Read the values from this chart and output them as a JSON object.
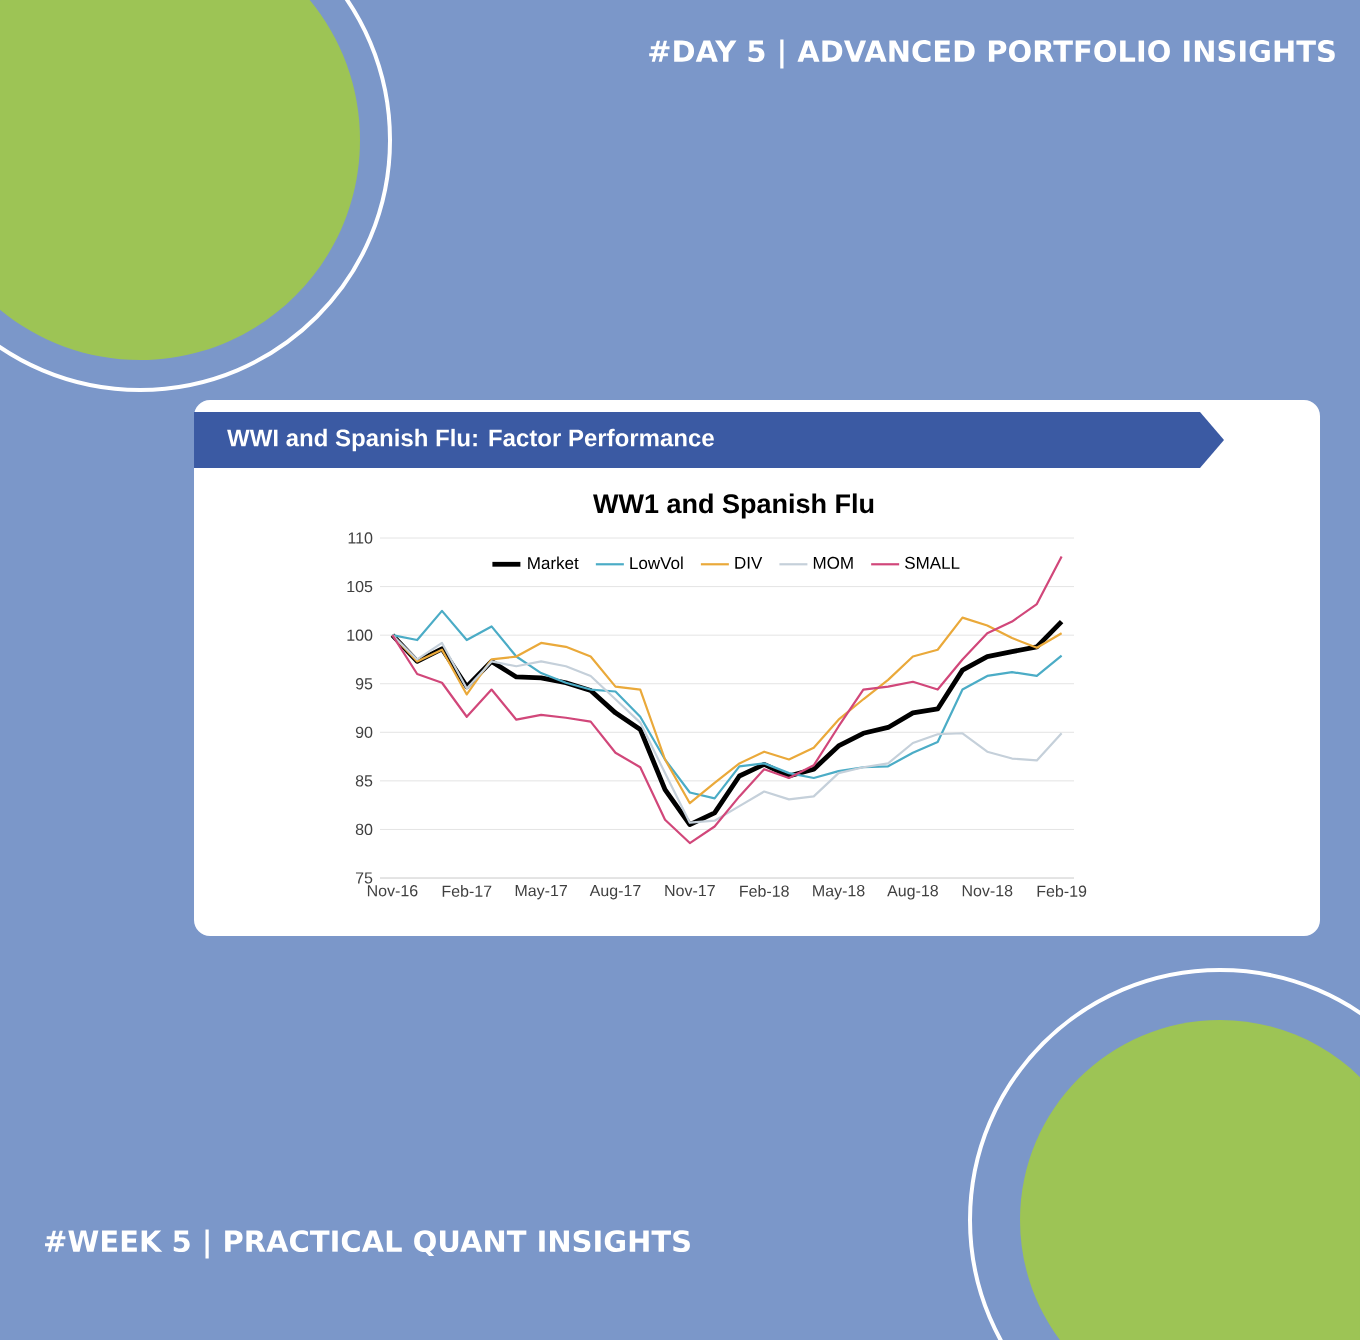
{
  "chart_data": {
    "type": "line",
    "title": "WWI and Spanish Flu: Factor Performance",
    "subtitle": "WW1 and Spanish Flu",
    "annotations": [
      "#DAY 5 | ADVANCED PORTFOLIO INSIGHTS",
      "#WEEK 5 | PRACTICAL QUANT INSIGHTS"
    ],
    "categories": [
      "Nov-16",
      null,
      null,
      "Feb-17",
      null,
      null,
      "May-17",
      null,
      null,
      "Aug-17",
      null,
      null,
      "Nov-17",
      null,
      null,
      "Feb-18",
      null,
      null,
      "May-18",
      null,
      null,
      "Aug-18",
      null,
      null,
      "Nov-18",
      null,
      null,
      "Feb-19"
    ],
    "series": [
      {
        "name": "Market",
        "color": "#000000",
        "values": [
          100,
          97.3,
          98.6,
          94.7,
          97.3,
          95.7,
          95.6,
          95.1,
          94.3,
          92,
          90.3,
          84.1,
          80.5,
          81.7,
          85.5,
          86.7,
          85.5,
          86.2,
          88.6,
          89.9,
          90.5,
          92,
          92.4,
          96.4,
          97.8,
          98.3,
          98.8,
          101.4
        ]
      },
      {
        "name": "LowVol",
        "color": "#4bacc6",
        "values": [
          100,
          99.5,
          102.5,
          99.5,
          100.9,
          97.8,
          96.1,
          95.1,
          94.4,
          94.2,
          91.6,
          87.2,
          83.8,
          83.2,
          86.5,
          86.8,
          85.8,
          85.3,
          86,
          86.4,
          86.5,
          87.9,
          89,
          94.4,
          95.8,
          96.2,
          95.8,
          97.9
        ]
      },
      {
        "name": "DIV",
        "color": "#eaa93a",
        "values": [
          100,
          97.3,
          98.5,
          93.9,
          97.5,
          97.8,
          99.2,
          98.8,
          97.8,
          94.7,
          94.4,
          87.2,
          82.7,
          84.8,
          86.8,
          88,
          87.2,
          88.4,
          91.3,
          93.4,
          95.4,
          97.8,
          98.5,
          101.8,
          101,
          99.7,
          98.7,
          100.2
        ]
      },
      {
        "name": "MOM",
        "color": "#c5d0da",
        "values": [
          100,
          97.5,
          99.2,
          94.5,
          97.3,
          96.8,
          97.3,
          96.8,
          95.8,
          93.4,
          91,
          85.8,
          80.7,
          80.9,
          82.4,
          83.9,
          83.1,
          83.4,
          85.8,
          86.4,
          86.8,
          88.9,
          89.8,
          89.9,
          88,
          87.3,
          87.1,
          89.9
        ]
      },
      {
        "name": "SMALL",
        "color": "#d1477a",
        "values": [
          100,
          96,
          95.1,
          91.6,
          94.4,
          91.3,
          91.8,
          91.5,
          91.1,
          87.9,
          86.4,
          81,
          78.6,
          80.3,
          83.4,
          86.2,
          85.3,
          86.6,
          90.6,
          94.4,
          94.7,
          95.2,
          94.4,
          97.5,
          100.2,
          101.4,
          103.2,
          108.1
        ]
      }
    ],
    "ylim": [
      75,
      110
    ],
    "yticks": [
      75,
      80,
      85,
      90,
      95,
      100,
      105,
      110
    ],
    "grid": "y",
    "legend": "top",
    "marker": "none",
    "line_style": "solid"
  }
}
